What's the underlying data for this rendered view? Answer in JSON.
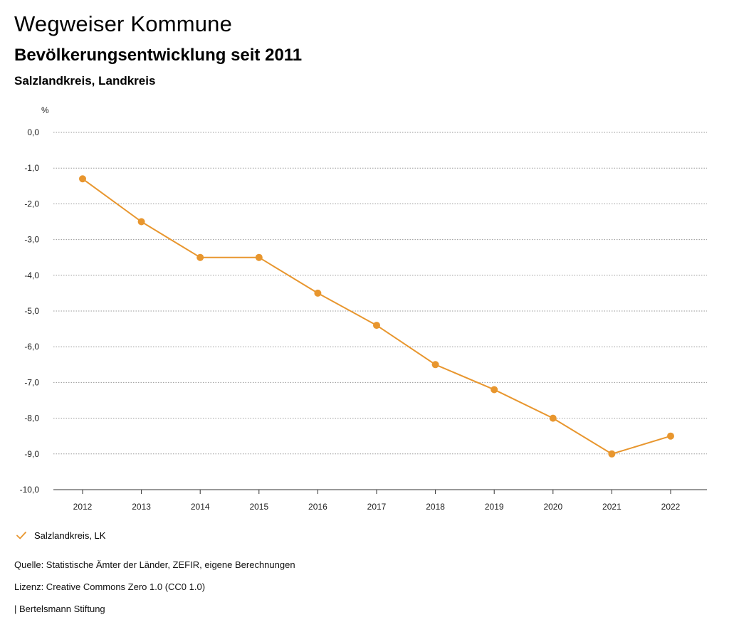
{
  "header": {
    "title": "Wegweiser Kommune",
    "subtitle": "Bevölkerungsentwicklung seit 2011",
    "region": "Salzlandkreis, Landkreis"
  },
  "chart_data": {
    "type": "line",
    "title": "Bevölkerungsentwicklung seit 2011",
    "ylabel": "%",
    "xlabel": "",
    "ylim": [
      -10,
      0
    ],
    "yticks": [
      0,
      -1,
      -2,
      -3,
      -4,
      -5,
      -6,
      -7,
      -8,
      -9,
      -10
    ],
    "ytick_labels": [
      "0,0",
      "-1,0",
      "-2,0",
      "-3,0",
      "-4,0",
      "-5,0",
      "-6,0",
      "-7,0",
      "-8,0",
      "-9,0",
      "-10,0"
    ],
    "categories": [
      "2012",
      "2013",
      "2014",
      "2015",
      "2016",
      "2017",
      "2018",
      "2019",
      "2020",
      "2021",
      "2022"
    ],
    "series": [
      {
        "name": "Salzlandkreis, LK",
        "color": "#E8962E",
        "values": [
          -1.3,
          -2.5,
          -3.5,
          -3.5,
          -4.5,
          -5.4,
          -6.5,
          -7.2,
          -8.0,
          -9.0,
          -8.5
        ]
      }
    ],
    "grid": true,
    "legend_position": "bottom-left"
  },
  "legend": {
    "label": "Salzlandkreis, LK"
  },
  "footer": {
    "source": "Quelle: Statistische Ämter der Länder, ZEFIR, eigene Berechnungen",
    "license": "Lizenz: Creative Commons Zero 1.0 (CC0 1.0)",
    "publisher": "| Bertelsmann Stiftung"
  }
}
